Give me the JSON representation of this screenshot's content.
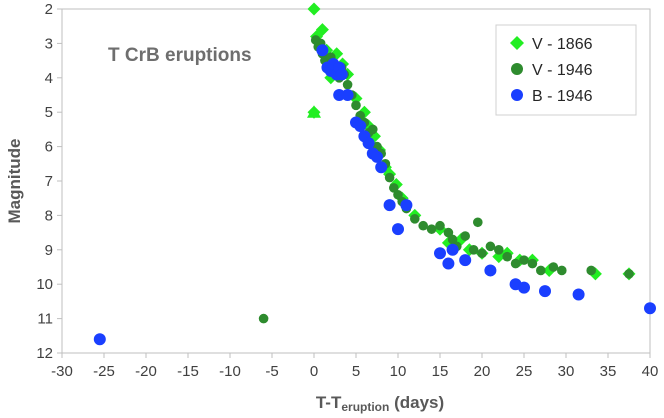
{
  "chart_data": {
    "type": "scatter",
    "title": "T CrB eruptions",
    "xlabel": "T-T",
    "xlabel_sub": "eruption",
    "xlabel_suffix": " (days)",
    "ylabel": "Magnitude",
    "xlim": [
      -30,
      40
    ],
    "ylim": [
      2,
      12
    ],
    "y_inverted": true,
    "x_ticks": [
      -30,
      -25,
      -20,
      -15,
      -10,
      -5,
      0,
      5,
      10,
      15,
      20,
      25,
      30,
      35,
      40
    ],
    "y_ticks": [
      2,
      3,
      4,
      5,
      6,
      7,
      8,
      9,
      10,
      11,
      12
    ],
    "grid": false,
    "legend_position": "top-right",
    "series": [
      {
        "name": "V - 1866",
        "marker": "diamond",
        "color": "#22ee22",
        "points": [
          [
            0,
            2.0
          ],
          [
            0.3,
            2.8
          ],
          [
            1,
            2.6
          ],
          [
            1.5,
            3.2
          ],
          [
            2,
            3.5
          ],
          [
            2.7,
            3.3
          ],
          [
            3.4,
            3.6
          ],
          [
            2,
            4.0
          ],
          [
            0,
            5.0
          ],
          [
            4,
            3.9
          ],
          [
            5,
            4.6
          ],
          [
            6,
            5.0
          ],
          [
            6.5,
            5.4
          ],
          [
            7.2,
            5.7
          ],
          [
            7.8,
            6.1
          ],
          [
            8.5,
            6.6
          ],
          [
            9,
            6.8
          ],
          [
            9.8,
            7.1
          ],
          [
            10.5,
            7.5
          ],
          [
            12,
            8.0
          ],
          [
            15,
            8.4
          ],
          [
            16,
            8.8
          ],
          [
            17.5,
            8.7
          ],
          [
            18.5,
            9.0
          ],
          [
            20,
            9.1
          ],
          [
            22,
            9.2
          ],
          [
            23,
            9.1
          ],
          [
            24.5,
            9.3
          ],
          [
            26,
            9.3
          ],
          [
            28,
            9.6
          ],
          [
            33.5,
            9.7
          ],
          [
            37.5,
            9.7
          ]
        ]
      },
      {
        "name": "V - 1946",
        "marker": "circle",
        "color": "#2e8b2e",
        "points": [
          [
            0.2,
            2.9
          ],
          [
            0.5,
            3.1
          ],
          [
            0.8,
            3.0
          ],
          [
            1,
            3.3
          ],
          [
            1.3,
            3.5
          ],
          [
            1.6,
            3.7
          ],
          [
            2,
            3.4
          ],
          [
            2.3,
            3.6
          ],
          [
            2.6,
            3.9
          ],
          [
            3,
            4.0
          ],
          [
            3.3,
            3.7
          ],
          [
            3.6,
            3.9
          ],
          [
            4,
            4.2
          ],
          [
            4.5,
            4.5
          ],
          [
            5,
            4.8
          ],
          [
            5.5,
            5.1
          ],
          [
            6,
            5.3
          ],
          [
            6.5,
            5.6
          ],
          [
            7,
            5.5
          ],
          [
            7.5,
            6.0
          ],
          [
            8,
            6.2
          ],
          [
            8.5,
            6.5
          ],
          [
            9,
            6.9
          ],
          [
            9.5,
            7.2
          ],
          [
            10,
            7.4
          ],
          [
            10.5,
            7.6
          ],
          [
            11,
            7.8
          ],
          [
            12,
            8.1
          ],
          [
            13,
            8.3
          ],
          [
            14,
            8.4
          ],
          [
            15,
            8.3
          ],
          [
            16,
            8.5
          ],
          [
            16.5,
            8.7
          ],
          [
            17,
            8.9
          ],
          [
            18,
            8.6
          ],
          [
            19,
            9.0
          ],
          [
            19.5,
            8.2
          ],
          [
            20,
            9.1
          ],
          [
            21,
            8.9
          ],
          [
            22,
            9.0
          ],
          [
            23,
            9.2
          ],
          [
            24,
            9.4
          ],
          [
            25,
            9.3
          ],
          [
            26,
            9.4
          ],
          [
            27,
            9.6
          ],
          [
            28.5,
            9.5
          ],
          [
            29.5,
            9.6
          ],
          [
            33,
            9.6
          ],
          [
            37.5,
            9.7
          ],
          [
            -6,
            11.0
          ]
        ]
      },
      {
        "name": "B - 1946",
        "marker": "circle",
        "color": "#1a3fff",
        "points": [
          [
            1,
            3.2
          ],
          [
            1.6,
            3.7
          ],
          [
            2,
            3.8
          ],
          [
            2.3,
            3.6
          ],
          [
            2.7,
            3.9
          ],
          [
            3,
            3.7
          ],
          [
            3.3,
            3.9
          ],
          [
            3,
            4.5
          ],
          [
            4,
            4.5
          ],
          [
            5,
            5.3
          ],
          [
            5.5,
            5.4
          ],
          [
            6,
            5.7
          ],
          [
            6.5,
            5.9
          ],
          [
            7,
            6.2
          ],
          [
            7.5,
            6.3
          ],
          [
            8,
            6.6
          ],
          [
            9,
            7.7
          ],
          [
            10,
            8.4
          ],
          [
            11,
            7.7
          ],
          [
            15,
            9.1
          ],
          [
            16,
            9.4
          ],
          [
            16.5,
            9.0
          ],
          [
            18,
            9.3
          ],
          [
            21,
            9.6
          ],
          [
            24,
            10.0
          ],
          [
            25,
            10.1
          ],
          [
            27.5,
            10.2
          ],
          [
            31.5,
            10.3
          ],
          [
            40,
            10.7
          ],
          [
            -25.5,
            11.6
          ]
        ]
      }
    ]
  }
}
